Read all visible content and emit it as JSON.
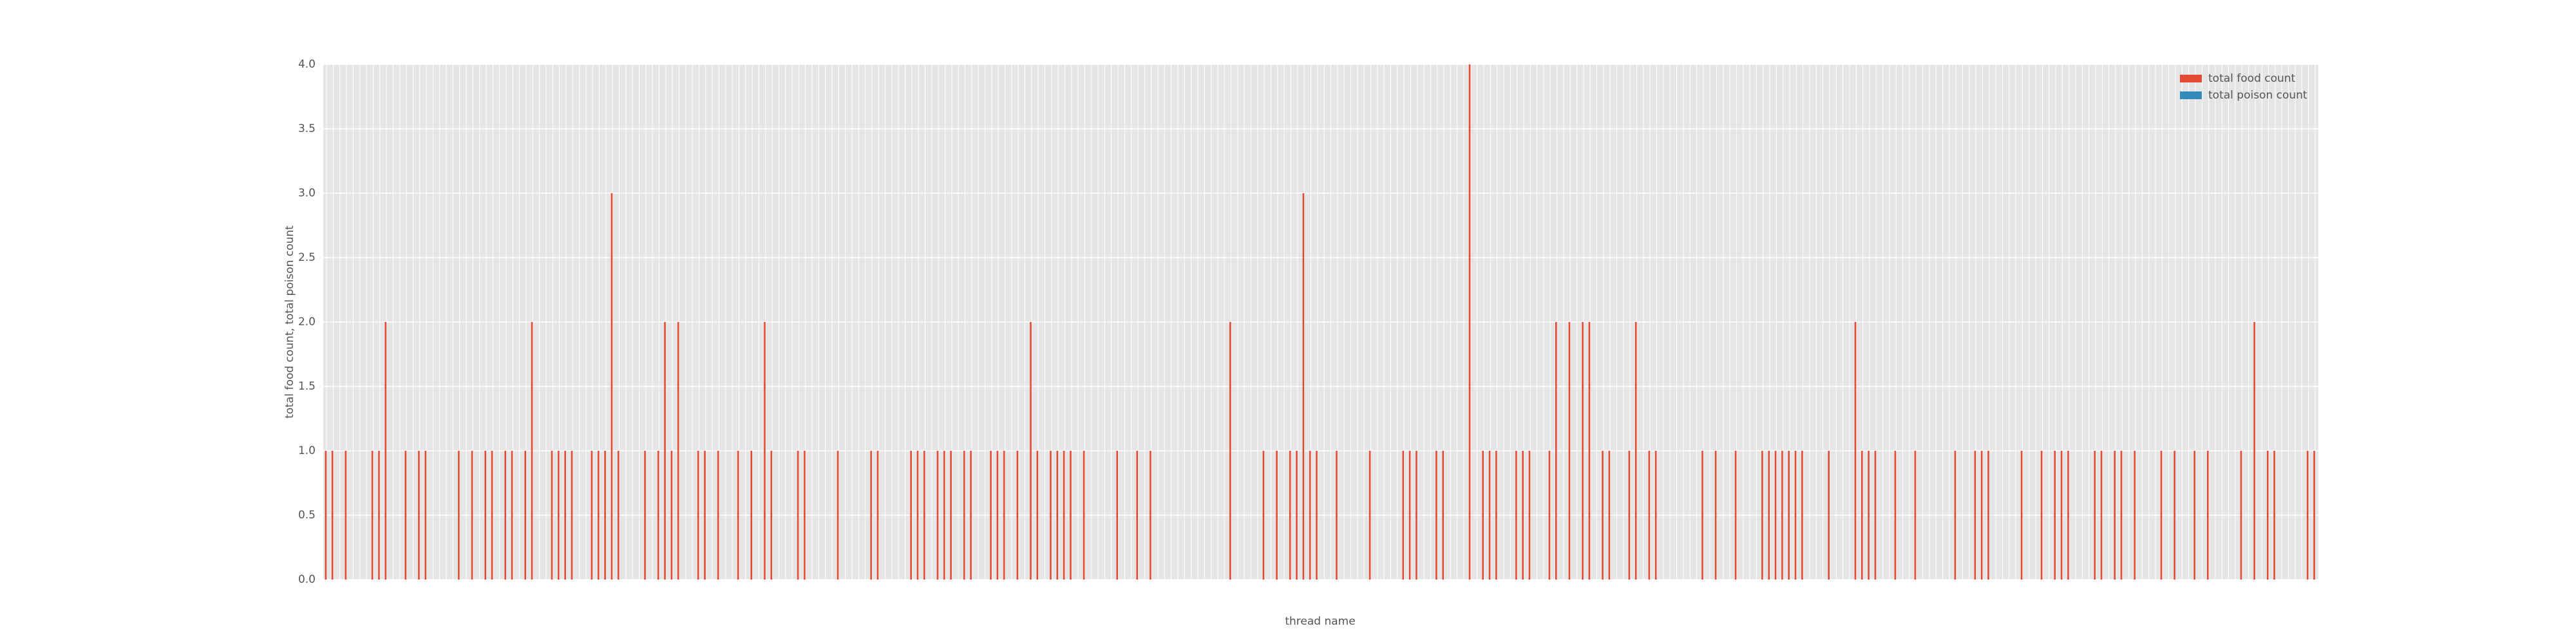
{
  "chart_data": {
    "type": "bar",
    "xlabel": "thread name",
    "ylabel": "total food count, total poison count",
    "legend": "upper right",
    "grid": true,
    "ylim": [
      0,
      4
    ],
    "yticks": [
      {
        "value": 0,
        "label": "0.0"
      },
      0.5,
      {
        "value": 1,
        "label": "1.0"
      },
      1.5,
      {
        "value": 2,
        "label": "2.0"
      },
      2.5,
      {
        "value": 3,
        "label": "3.0"
      },
      3.5,
      {
        "value": 4,
        "label": "4.0"
      }
    ],
    "categories": [
      null,
      null,
      null,
      null,
      null,
      null,
      null,
      null,
      null,
      null,
      null,
      null,
      null,
      null,
      null,
      null,
      null,
      null,
      null,
      null,
      null,
      null,
      null,
      null,
      null,
      null,
      null,
      null,
      null,
      null,
      null,
      null,
      null,
      null,
      null,
      null,
      null,
      null,
      null,
      null,
      null,
      null,
      null,
      null,
      null,
      null,
      null,
      null,
      null,
      null,
      null,
      null,
      null,
      null,
      null,
      null,
      null,
      null,
      null,
      null,
      null,
      null,
      null,
      null,
      null,
      null,
      null,
      null,
      null,
      null,
      null,
      null,
      null,
      null,
      null,
      null,
      null,
      null,
      null,
      null,
      null,
      null,
      null,
      null,
      null,
      null,
      null,
      null,
      null,
      null,
      null,
      null,
      null,
      null,
      null,
      null,
      null,
      null,
      null,
      null,
      null,
      null,
      null,
      null,
      null,
      null,
      null,
      null,
      null,
      null,
      null,
      null,
      null,
      null,
      null,
      null,
      null,
      null,
      null,
      null,
      null,
      null,
      null,
      null,
      null,
      null,
      null,
      null,
      null,
      null,
      null,
      null,
      null,
      null,
      null,
      null,
      null,
      null,
      null,
      null,
      null,
      null,
      null,
      null,
      null,
      null,
      null,
      null,
      null,
      null,
      null,
      null,
      null,
      null,
      null,
      null,
      null,
      null,
      null,
      null,
      null,
      null,
      null,
      null,
      null,
      null,
      null,
      null,
      null,
      null,
      null,
      null,
      null,
      null,
      null,
      null,
      null,
      null,
      null,
      null,
      null,
      null,
      null,
      null,
      null,
      null,
      null,
      null,
      null,
      null,
      null,
      null,
      null,
      null,
      null,
      null,
      null,
      null,
      null,
      null,
      null,
      null,
      null,
      null,
      null,
      null,
      null,
      null,
      null,
      null,
      null,
      null,
      null,
      null,
      null,
      null,
      null,
      null,
      null,
      null,
      null,
      null,
      null,
      null,
      null,
      null,
      null,
      null,
      null,
      null,
      null,
      null,
      null,
      null,
      null,
      null,
      null,
      null,
      null,
      null,
      null,
      null,
      null,
      null,
      null,
      null,
      null,
      null,
      null,
      null,
      null,
      null,
      null,
      null,
      null,
      null,
      null,
      null,
      null,
      null,
      null,
      null,
      null,
      null,
      null,
      null,
      null,
      null,
      null,
      null,
      null,
      null,
      null,
      null,
      null,
      null,
      null,
      null,
      null,
      null,
      null,
      null,
      null,
      null,
      null,
      null,
      null,
      null,
      null,
      null,
      null,
      null,
      null,
      null,
      null,
      null,
      null,
      null,
      null,
      null
    ],
    "series": [
      {
        "name": "total food count",
        "color": "#e24a33",
        "values": [
          1,
          1,
          0,
          1,
          0,
          0,
          0,
          1,
          1,
          2,
          0,
          0,
          1,
          0,
          1,
          1,
          0,
          0,
          0,
          0,
          1,
          0,
          1,
          0,
          1,
          1,
          0,
          1,
          1,
          0,
          1,
          2,
          0,
          0,
          1,
          1,
          1,
          1,
          0,
          0,
          1,
          1,
          1,
          3,
          1,
          0,
          0,
          0,
          1,
          0,
          1,
          2,
          1,
          2,
          0,
          0,
          1,
          1,
          0,
          1,
          0,
          0,
          1,
          0,
          1,
          0,
          2,
          1,
          0,
          0,
          0,
          1,
          1,
          0,
          0,
          0,
          0,
          1,
          0,
          0,
          0,
          0,
          1,
          1,
          0,
          0,
          0,
          0,
          1,
          1,
          1,
          0,
          1,
          1,
          1,
          0,
          1,
          1,
          0,
          0,
          1,
          1,
          1,
          0,
          1,
          0,
          2,
          1,
          0,
          1,
          1,
          1,
          1,
          0,
          1,
          0,
          0,
          0,
          0,
          1,
          0,
          0,
          1,
          0,
          1,
          0,
          0,
          0,
          0,
          0,
          0,
          0,
          0,
          0,
          0,
          0,
          2,
          0,
          0,
          0,
          0,
          1,
          0,
          1,
          0,
          1,
          1,
          3,
          1,
          1,
          0,
          0,
          1,
          0,
          0,
          0,
          0,
          1,
          0,
          0,
          0,
          0,
          1,
          1,
          1,
          0,
          0,
          1,
          1,
          0,
          0,
          0,
          4,
          0,
          1,
          1,
          1,
          0,
          0,
          1,
          1,
          1,
          0,
          0,
          1,
          2,
          0,
          2,
          0,
          2,
          2,
          0,
          1,
          1,
          0,
          0,
          1,
          2,
          0,
          1,
          1,
          0,
          0,
          0,
          0,
          0,
          0,
          1,
          0,
          1,
          0,
          0,
          1,
          0,
          0,
          0,
          1,
          1,
          1,
          1,
          1,
          1,
          1,
          0,
          0,
          0,
          1,
          0,
          0,
          0,
          2,
          1,
          1,
          1,
          0,
          0,
          1,
          0,
          0,
          1,
          0,
          0,
          0,
          0,
          0,
          1,
          0,
          0,
          1,
          1,
          1,
          0,
          0,
          0,
          0,
          1,
          0,
          0,
          1,
          0,
          1,
          1,
          1,
          0,
          0,
          0,
          1,
          1,
          0,
          1,
          1,
          0,
          1,
          0,
          0,
          0,
          1,
          0,
          1,
          0,
          0,
          1,
          0,
          1,
          0,
          0,
          0,
          0,
          1,
          0,
          2,
          0,
          1,
          1,
          0,
          0,
          0,
          0,
          1,
          1
        ]
      },
      {
        "name": "total poison count",
        "color": "#348abd",
        "values": [
          0,
          0,
          0,
          0,
          0,
          0,
          0,
          0,
          0,
          0,
          0,
          0,
          0,
          0,
          0,
          0,
          0,
          0,
          0,
          0,
          0,
          0,
          0,
          0,
          0,
          0,
          0,
          0,
          0,
          0,
          0,
          0,
          0,
          0,
          0,
          0,
          0,
          0,
          0,
          0,
          0,
          0,
          0,
          0,
          0,
          0,
          0,
          0,
          0,
          0,
          0,
          0,
          0,
          0,
          0,
          0,
          0,
          0,
          0,
          0,
          0,
          0,
          0,
          0,
          0,
          0,
          0,
          0,
          0,
          0,
          0,
          0,
          0,
          0,
          0,
          0,
          0,
          0,
          0,
          0,
          0,
          0,
          0,
          0,
          0,
          0,
          0,
          0,
          0,
          0,
          0,
          0,
          0,
          0,
          0,
          0,
          0,
          0,
          0,
          0,
          0,
          0,
          0,
          0,
          0,
          0,
          0,
          0,
          0,
          0,
          0,
          0,
          0,
          0,
          0,
          0,
          0,
          0,
          0,
          0,
          0,
          0,
          0,
          0,
          0,
          0,
          0,
          0,
          0,
          0,
          0,
          0,
          0,
          0,
          0,
          0,
          0,
          0,
          0,
          0,
          0,
          0,
          0,
          0,
          0,
          0,
          0,
          0,
          0,
          0,
          0,
          0,
          0,
          0,
          0,
          0,
          0,
          0,
          0,
          0,
          0,
          0,
          0,
          0,
          0,
          0,
          0,
          0,
          0,
          0,
          0,
          0,
          0,
          0,
          0,
          0,
          0,
          0,
          0,
          0,
          0,
          0,
          0,
          0,
          0,
          0,
          0,
          0,
          0,
          0,
          0,
          0,
          0,
          0,
          0,
          0,
          0,
          0,
          0,
          0,
          0,
          0,
          0,
          0,
          0,
          0,
          0,
          0,
          0,
          0,
          0,
          0,
          0,
          0,
          0,
          0,
          0,
          0,
          0,
          0,
          0,
          0,
          0,
          0,
          0,
          0,
          0,
          0,
          0,
          0,
          0,
          0,
          0,
          0,
          0,
          0,
          0,
          0,
          0,
          0,
          0,
          0,
          0,
          0,
          0,
          0,
          0,
          0,
          0,
          0,
          0,
          0,
          0,
          0,
          0,
          0,
          0,
          0,
          0,
          0,
          0,
          0,
          0,
          0,
          0,
          0,
          0,
          0,
          0,
          0,
          0,
          0,
          0,
          0,
          0,
          0,
          0,
          0,
          0,
          0,
          0,
          0,
          0,
          0,
          0,
          0,
          0,
          0,
          0,
          0,
          0,
          0,
          0,
          0,
          0,
          0,
          0,
          0,
          0,
          0
        ]
      }
    ]
  }
}
